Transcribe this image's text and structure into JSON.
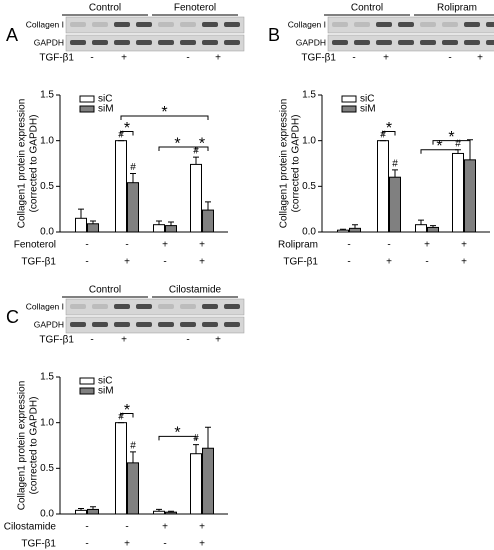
{
  "chart_data": [
    {
      "type": "bar",
      "panel": "A",
      "blot": {
        "groups": [
          "Control",
          "Fenoterol"
        ],
        "rows": [
          "Collagen I",
          "GAPDH"
        ],
        "treatment": {
          "name": "TGF-β1",
          "signs": [
            "-",
            "+",
            "-",
            "+"
          ]
        }
      },
      "ylabel": [
        "Collagen1 protein expression",
        "(corrected to GAPDH)"
      ],
      "ylim": [
        0,
        1.5
      ],
      "yticks": [
        {
          "value": 0,
          "label": "0.0"
        },
        0.5,
        {
          "value": 1,
          "label": "1.0"
        },
        1.5
      ],
      "series": [
        {
          "name": "siC",
          "color": "#ffffff",
          "values": [
            0.15,
            1.0,
            0.08,
            0.74
          ],
          "errors": [
            0.1,
            0,
            0.04,
            0.08
          ],
          "markers": [
            null,
            "#",
            null,
            "#"
          ]
        },
        {
          "name": "siM",
          "color": "#808080",
          "values": [
            0.09,
            0.54,
            0.07,
            0.24
          ],
          "errors": [
            0.03,
            0.1,
            0.04,
            0.09
          ],
          "markers": [
            null,
            "#",
            null,
            null
          ]
        }
      ],
      "significance": [
        "*",
        "*",
        "*",
        "*"
      ],
      "treatments": [
        {
          "name": "Fenoterol",
          "signs": [
            "-",
            "-",
            "+",
            "+"
          ]
        },
        {
          "name": "TGF-β1",
          "signs": [
            "-",
            "+",
            "-",
            "+"
          ]
        }
      ]
    },
    {
      "type": "bar",
      "panel": "B",
      "blot": {
        "groups": [
          "Control",
          "Rolipram"
        ],
        "rows": [
          "Collagen I",
          "GAPDH"
        ],
        "treatment": {
          "name": "TGF-β1",
          "signs": [
            "-",
            "+",
            "-",
            "+"
          ]
        }
      },
      "ylabel": [
        "Collagen1 protein expression",
        "(corrected to GAPDH)"
      ],
      "ylim": [
        0,
        1.5
      ],
      "yticks": [
        {
          "value": 0,
          "label": "0.0"
        },
        0.5,
        {
          "value": 1,
          "label": "1.0"
        },
        1.5
      ],
      "series": [
        {
          "name": "siC",
          "color": "#ffffff",
          "values": [
            0.02,
            1.0,
            0.08,
            0.86
          ],
          "errors": [
            0.01,
            0,
            0.05,
            0.04
          ],
          "markers": [
            null,
            "#",
            null,
            "#"
          ]
        },
        {
          "name": "siM",
          "color": "#808080",
          "values": [
            0.04,
            0.6,
            0.05,
            0.79
          ],
          "errors": [
            0.04,
            0.08,
            0.02,
            0.22
          ],
          "markers": [
            null,
            "#",
            null,
            null
          ]
        }
      ],
      "significance": [
        "*",
        "*",
        "*"
      ],
      "treatments": [
        {
          "name": "Rolipram",
          "signs": [
            "-",
            "-",
            "+",
            "+"
          ]
        },
        {
          "name": "TGF-β1",
          "signs": [
            "-",
            "+",
            "-",
            "+"
          ]
        }
      ]
    },
    {
      "type": "bar",
      "panel": "C",
      "blot": {
        "groups": [
          "Control",
          "Cilostamide"
        ],
        "rows": [
          "Collagen I",
          "GAPDH"
        ],
        "treatment": {
          "name": "TGF-β1",
          "signs": [
            "-",
            "+",
            "-",
            "+"
          ]
        }
      },
      "ylabel": [
        "Collagen1 protein expression",
        "(corrected to GAPDH)"
      ],
      "ylim": [
        0,
        1.5
      ],
      "yticks": [
        {
          "value": 0,
          "label": "0.0"
        },
        0.5,
        {
          "value": 1,
          "label": "1.0"
        },
        1.5
      ],
      "series": [
        {
          "name": "siC",
          "color": "#ffffff",
          "values": [
            0.04,
            1.0,
            0.03,
            0.66
          ],
          "errors": [
            0.02,
            0,
            0.02,
            0.1
          ],
          "markers": [
            null,
            "#",
            null,
            "#"
          ]
        },
        {
          "name": "siM",
          "color": "#808080",
          "values": [
            0.05,
            0.56,
            0.02,
            0.72
          ],
          "errors": [
            0.03,
            0.12,
            0.01,
            0.23
          ],
          "markers": [
            null,
            "#",
            null,
            null
          ]
        }
      ],
      "significance": [
        "*",
        "*"
      ],
      "treatments": [
        {
          "name": "Cilostamide",
          "signs": [
            "-",
            "-",
            "+",
            "+"
          ]
        },
        {
          "name": "TGF-β1",
          "signs": [
            "-",
            "+",
            "-",
            "+"
          ]
        }
      ]
    }
  ]
}
